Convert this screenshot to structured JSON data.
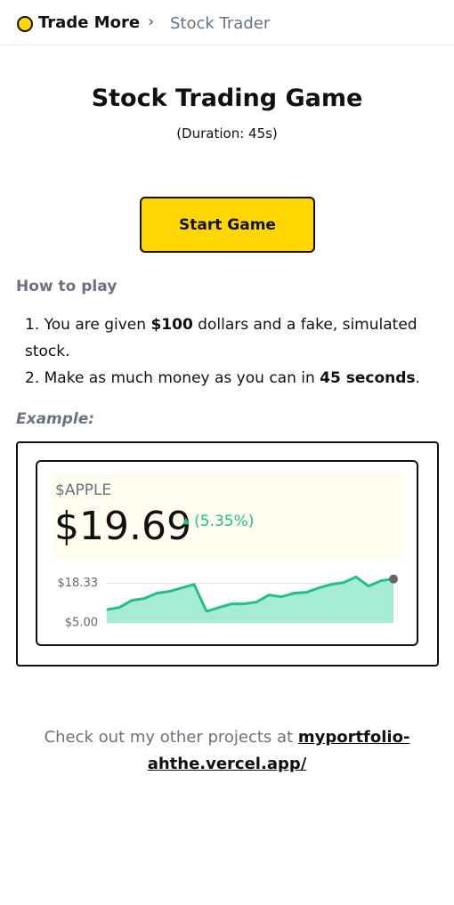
{
  "header": {
    "brand": "Trade More",
    "crumb": "Stock Trader"
  },
  "title": "Stock Trading Game",
  "duration": "(Duration: 45s)",
  "button": "Start Game",
  "how_to": {
    "heading": "How to play",
    "steps": [
      [
        "You are given ",
        "$100",
        " dollars and a fake, simulated stock."
      ],
      [
        "Make as much money as you can in ",
        "45 seconds",
        "."
      ]
    ]
  },
  "example": {
    "label": "Example:",
    "ticker": "$APPLE",
    "price": "$19.69",
    "change": "(5.35%)",
    "chart_data": {
      "type": "area",
      "color": "#22c087",
      "values": [
        9.5,
        10.2,
        12.6,
        13.2,
        15.0,
        15.6,
        16.8,
        18.0,
        8.9,
        10.2,
        11.4,
        11.4,
        12.0,
        14.4,
        13.8,
        15.0,
        15.3,
        16.8,
        18.0,
        18.6,
        20.5,
        17.4,
        19.2,
        19.8
      ],
      "ylim": [
        5,
        23
      ],
      "yticks": [
        {
          "value": 5,
          "label": "$5.00"
        },
        {
          "value": 18.33,
          "label": "$18.33"
        }
      ]
    }
  },
  "footer": {
    "text": "Check out my other projects at ",
    "link": "myportfolio-ahthe.vercel.app/"
  }
}
